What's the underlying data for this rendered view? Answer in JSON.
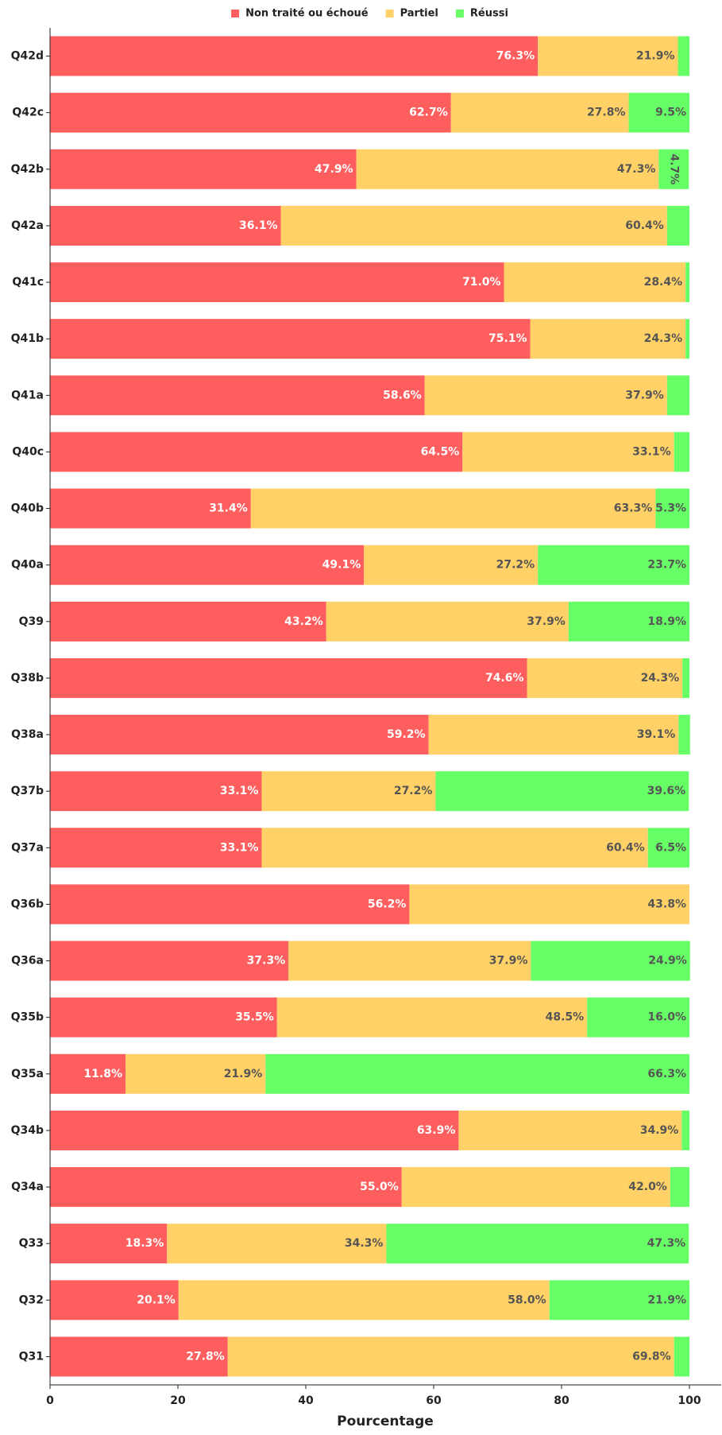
{
  "chart_data": {
    "type": "stacked_barh",
    "xlabel": "Pourcentage",
    "categories": [
      "Q42d",
      "Q42c",
      "Q42b",
      "Q42a",
      "Q41c",
      "Q41b",
      "Q41a",
      "Q40c",
      "Q40b",
      "Q40a",
      "Q39",
      "Q38b",
      "Q38a",
      "Q37b",
      "Q37a",
      "Q36b",
      "Q36a",
      "Q35b",
      "Q35a",
      "Q34b",
      "Q34a",
      "Q33",
      "Q32",
      "Q31"
    ],
    "series": [
      {
        "name": "Non traité ou échoué",
        "color": "#ff5e5e",
        "values": [
          76.3,
          62.7,
          47.9,
          36.1,
          71.0,
          75.1,
          58.6,
          64.5,
          31.4,
          49.1,
          43.2,
          74.6,
          59.2,
          33.1,
          33.1,
          56.2,
          37.3,
          35.5,
          11.8,
          63.9,
          55.0,
          18.3,
          20.1,
          27.8
        ],
        "value_labels": [
          "76.3%",
          "62.7%",
          "47.9%",
          "36.1%",
          "71.0%",
          "75.1%",
          "58.6%",
          "64.5%",
          "31.4%",
          "49.1%",
          "43.2%",
          "74.6%",
          "59.2%",
          "33.1%",
          "33.1%",
          "56.2%",
          "37.3%",
          "35.5%",
          "11.8%",
          "63.9%",
          "55.0%",
          "18.3%",
          "20.1%",
          "27.8%"
        ]
      },
      {
        "name": "Partiel",
        "color": "#ffd166",
        "values": [
          21.9,
          27.8,
          47.3,
          60.4,
          28.4,
          24.3,
          37.9,
          33.1,
          63.3,
          27.2,
          37.9,
          24.3,
          39.1,
          27.2,
          60.4,
          43.8,
          37.9,
          48.5,
          21.9,
          34.9,
          42.0,
          34.3,
          58.0,
          69.8
        ],
        "value_labels": [
          "21.9%",
          "27.8%",
          "47.3%",
          "60.4%",
          "28.4%",
          "24.3%",
          "37.9%",
          "33.1%",
          "63.3%",
          "27.2%",
          "37.9%",
          "24.3%",
          "39.1%",
          "27.2%",
          "60.4%",
          "43.8%",
          "37.9%",
          "48.5%",
          "21.9%",
          "34.9%",
          "42.0%",
          "34.3%",
          "58.0%",
          "69.8%"
        ]
      },
      {
        "name": "Réussi",
        "color": "#66ff66",
        "values": [
          1.8,
          9.5,
          4.7,
          3.5,
          0.6,
          0.6,
          3.5,
          2.4,
          5.3,
          23.7,
          18.9,
          1.1,
          1.8,
          39.6,
          6.5,
          0,
          24.9,
          16.0,
          66.3,
          1.2,
          3.0,
          47.3,
          21.9,
          2.4
        ],
        "value_labels": [
          null,
          "9.5%",
          "4.7%",
          null,
          null,
          null,
          null,
          null,
          "5.3%",
          "23.7%",
          "18.9%",
          null,
          null,
          "39.6%",
          "6.5%",
          null,
          "24.9%",
          "16.0%",
          "66.3%",
          null,
          null,
          "47.3%",
          "21.9%",
          null
        ]
      }
    ],
    "xlim": [
      0,
      100
    ],
    "xticks": [
      0,
      20,
      40,
      60,
      80,
      100
    ],
    "legend": "upper center"
  }
}
